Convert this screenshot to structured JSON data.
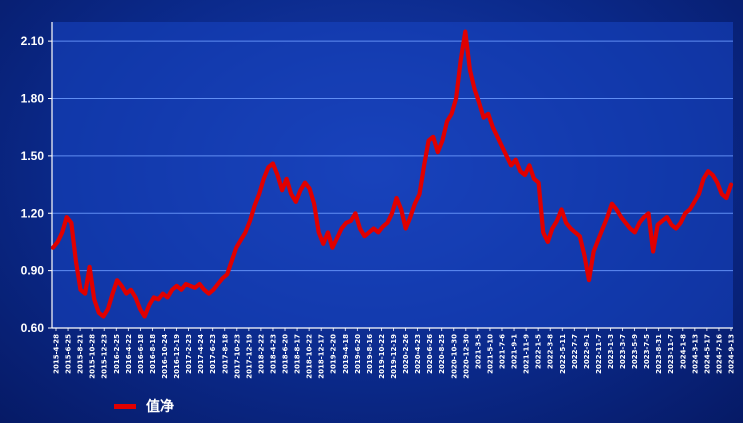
{
  "chart_data": {
    "type": "line",
    "y_ticks": [
      "2.10",
      "1.80",
      "1.50",
      "1.20",
      "0.90",
      "0.60"
    ],
    "ylim": [
      0.6,
      2.2
    ],
    "x_tick_labels": [
      "2015-4-28",
      "2015-6-25",
      "2015-8-21",
      "2015-10-28",
      "2015-12-23",
      "2016-2-25",
      "2016-4-22",
      "2016-6-18",
      "2016-8-18",
      "2016-10-24",
      "2016-12-19",
      "2017-2-23",
      "2017-4-24",
      "2017-6-23",
      "2017-8-18",
      "2017-10-23",
      "2017-12-19",
      "2018-2-22",
      "2018-4-23",
      "2018-6-20",
      "2018-8-17",
      "2018-10-22",
      "2018-12-17",
      "2019-2-20",
      "2019-4-18",
      "2019-6-20",
      "2019-8-16",
      "2019-10-22",
      "2019-12-19",
      "2020-2-26",
      "2020-4-23",
      "2020-6-26",
      "2020-8-25",
      "2020-10-30",
      "2020-12-30",
      "2021-3-5",
      "2021-5-10",
      "2021-7-6",
      "2021-9-1",
      "2021-11-9",
      "2022-1-5",
      "2022-3-8",
      "2022-5-11",
      "2022-7-7",
      "2022-9-1",
      "2022-11-7",
      "2023-1-3",
      "2023-3-7",
      "2023-5-9",
      "2023-7-5",
      "2023-8-31",
      "2023-11-7",
      "2024-1-8",
      "2024-3-13",
      "2024-5-17",
      "2024-7-16",
      "2024-9-13"
    ],
    "grid": true,
    "legend_position": "bottom-left",
    "series": [
      {
        "name": "值净",
        "color": "#e00000",
        "values": [
          1.02,
          1.05,
          1.1,
          1.18,
          1.15,
          0.95,
          0.8,
          0.78,
          0.92,
          0.75,
          0.68,
          0.66,
          0.7,
          0.78,
          0.85,
          0.82,
          0.78,
          0.8,
          0.76,
          0.7,
          0.66,
          0.72,
          0.76,
          0.75,
          0.78,
          0.76,
          0.8,
          0.82,
          0.8,
          0.83,
          0.82,
          0.81,
          0.83,
          0.8,
          0.78,
          0.8,
          0.83,
          0.86,
          0.88,
          0.95,
          1.02,
          1.06,
          1.1,
          1.16,
          1.24,
          1.3,
          1.38,
          1.44,
          1.46,
          1.4,
          1.32,
          1.38,
          1.3,
          1.26,
          1.32,
          1.36,
          1.33,
          1.25,
          1.1,
          1.04,
          1.1,
          1.02,
          1.07,
          1.12,
          1.15,
          1.16,
          1.2,
          1.12,
          1.08,
          1.1,
          1.12,
          1.1,
          1.13,
          1.15,
          1.2,
          1.28,
          1.22,
          1.12,
          1.18,
          1.25,
          1.3,
          1.45,
          1.58,
          1.6,
          1.52,
          1.58,
          1.68,
          1.72,
          1.8,
          2.0,
          2.15,
          1.95,
          1.85,
          1.78,
          1.7,
          1.72,
          1.65,
          1.6,
          1.55,
          1.5,
          1.45,
          1.48,
          1.42,
          1.4,
          1.45,
          1.38,
          1.36,
          1.1,
          1.05,
          1.12,
          1.16,
          1.22,
          1.15,
          1.12,
          1.1,
          1.08,
          0.98,
          0.85,
          1.0,
          1.06,
          1.12,
          1.18,
          1.25,
          1.22,
          1.18,
          1.15,
          1.12,
          1.1,
          1.15,
          1.18,
          1.2,
          1.0,
          1.14,
          1.16,
          1.18,
          1.14,
          1.12,
          1.15,
          1.2,
          1.22,
          1.26,
          1.3,
          1.38,
          1.42,
          1.4,
          1.36,
          1.3,
          1.28,
          1.35
        ]
      }
    ]
  }
}
